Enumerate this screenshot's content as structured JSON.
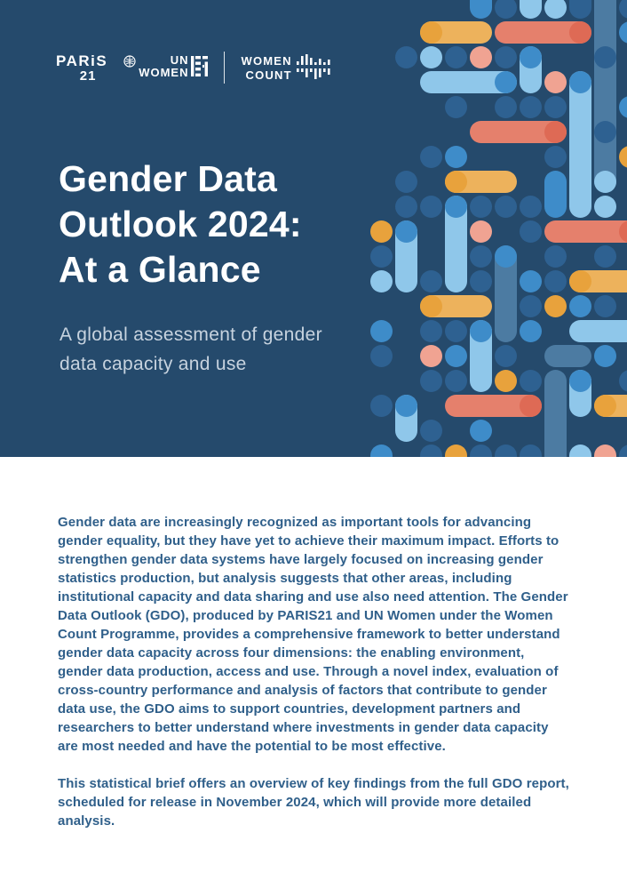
{
  "hero": {
    "background": "#254A6C",
    "logos": {
      "paris21": {
        "line1": "PARiS",
        "line2": "21"
      },
      "un_women": {
        "line1": "UN",
        "line2": "WOMEN"
      },
      "women_count": {
        "line1": "WOMEN",
        "line2": "COUNT"
      }
    },
    "title_lines": [
      "Gender Data",
      "Outlook 2024:",
      "At a Glance"
    ],
    "subtitle_lines": [
      "A global assessment of gender",
      "data capacity and use"
    ],
    "title_color": "#FFFFFF",
    "subtitle_color": "#C7D3DF"
  },
  "body": {
    "text_color": "#2F5F8A",
    "paragraph1": "Gender data are increasingly recognized as important tools for advancing gender equality, but they have yet to achieve their maximum impact. Efforts to strengthen gender data systems have largely focused on increasing gender statistics production, but analysis suggests that other areas, including institutional capacity and data sharing and use also need attention. The Gender Data Outlook (GDO), produced by PARIS21 and UN Women under the Women Count Programme, provides a comprehensive framework to better understand gender data capacity across four dimensions: the enabling environment, gender data production, access and use. Through a novel index, evaluation of cross-country performance and analysis of factors that contribute to gender data use, the GDO aims to support countries, development partners and researchers to better understand where investments in gender data capacity are most needed and have the potential to be most effective.",
    "paragraph2": "This statistical brief offers an overview of key findings from the full GDO report, scheduled for release in November 2024, which will provide more detailed analysis."
  },
  "pattern": {
    "colors": {
      "D": "#2E6191",
      "M": "#3E8CC9",
      "L": "#8FC7EA",
      "S": "#4C7BA2",
      "C": "#E5806C",
      "Cd": "#DE6A55",
      "Cl": "#F0A392",
      "O": "#E8A23C",
      "Ol": "#EDB25C"
    },
    "grid": {
      "ox": 401,
      "oy": 8,
      "pitch": 28,
      "dot": 25
    },
    "shapes": [
      {
        "c": 5,
        "r": -1,
        "d": "v",
        "len": 2,
        "col": "M"
      },
      {
        "c": 6,
        "r": 0,
        "d": "dot",
        "col": "D"
      },
      {
        "c": 7,
        "r": -1,
        "d": "v",
        "len": 2,
        "col": "L"
      },
      {
        "c": 8,
        "r": 0,
        "d": "dot",
        "col": "L"
      },
      {
        "c": 9,
        "r": -1,
        "d": "v",
        "len": 2,
        "col": "D"
      },
      {
        "c": 10,
        "r": -1,
        "d": "v",
        "len": 9,
        "col": "S"
      },
      {
        "c": 11,
        "r": 0,
        "d": "dot",
        "col": "D"
      },
      {
        "c": 11,
        "r": 1,
        "d": "dot",
        "col": "M"
      },
      {
        "c": 3,
        "r": 1,
        "d": "h",
        "len": 3,
        "col": "Ol",
        "cap": "left",
        "capCol": "O"
      },
      {
        "c": 6,
        "r": 1,
        "d": "h",
        "len": 4,
        "col": "C",
        "cap": "right",
        "capCol": "Cd"
      },
      {
        "c": 2,
        "r": 2,
        "d": "dot",
        "col": "D"
      },
      {
        "c": 3,
        "r": 2,
        "d": "dot",
        "col": "L"
      },
      {
        "c": 4,
        "r": 2,
        "d": "dot",
        "col": "D"
      },
      {
        "c": 5,
        "r": 2,
        "d": "dot",
        "col": "Cl"
      },
      {
        "c": 6,
        "r": 2,
        "d": "dot",
        "col": "D"
      },
      {
        "c": 7,
        "r": 2,
        "d": "v",
        "len": 2,
        "col": "L",
        "cap": "top",
        "capCol": "M"
      },
      {
        "c": 10,
        "r": 2,
        "d": "dot",
        "col": "D"
      },
      {
        "c": 3,
        "r": 3,
        "d": "h",
        "len": 4,
        "col": "L",
        "cap": "right",
        "capCol": "M"
      },
      {
        "c": 8,
        "r": 3,
        "d": "dot",
        "col": "Cl"
      },
      {
        "c": 9,
        "r": 3,
        "d": "v",
        "len": 6,
        "col": "L",
        "cap": "top",
        "capCol": "M"
      },
      {
        "c": 11,
        "r": 4,
        "d": "dot",
        "col": "M"
      },
      {
        "c": 4,
        "r": 4,
        "d": "dot",
        "col": "D"
      },
      {
        "c": 6,
        "r": 4,
        "d": "dot",
        "col": "D"
      },
      {
        "c": 7,
        "r": 4,
        "d": "dot",
        "col": "D"
      },
      {
        "c": 8,
        "r": 4,
        "d": "dot",
        "col": "D"
      },
      {
        "c": 10,
        "r": 5,
        "d": "dot",
        "col": "D"
      },
      {
        "c": 5,
        "r": 5,
        "d": "h",
        "len": 4,
        "col": "C",
        "cap": "right",
        "capCol": "Cd"
      },
      {
        "c": 11,
        "r": 6,
        "d": "dot",
        "col": "O"
      },
      {
        "c": 3,
        "r": 6,
        "d": "dot",
        "col": "D"
      },
      {
        "c": 4,
        "r": 6,
        "d": "dot",
        "col": "M"
      },
      {
        "c": 8,
        "r": 6,
        "d": "dot",
        "col": "D"
      },
      {
        "c": 10,
        "r": 7,
        "d": "dot",
        "col": "L"
      },
      {
        "c": 2,
        "r": 7,
        "d": "dot",
        "col": "D"
      },
      {
        "c": 4,
        "r": 7,
        "d": "h",
        "len": 3,
        "col": "Ol",
        "cap": "left",
        "capCol": "O"
      },
      {
        "c": 8,
        "r": 7,
        "d": "v",
        "len": 2,
        "col": "M"
      },
      {
        "c": 10,
        "r": 8,
        "d": "dot",
        "col": "L"
      },
      {
        "c": 2,
        "r": 8,
        "d": "dot",
        "col": "D"
      },
      {
        "c": 3,
        "r": 8,
        "d": "dot",
        "col": "D"
      },
      {
        "c": 4,
        "r": 8,
        "d": "v",
        "len": 4,
        "col": "L",
        "cap": "top",
        "capCol": "M"
      },
      {
        "c": 5,
        "r": 8,
        "d": "dot",
        "col": "D"
      },
      {
        "c": 6,
        "r": 8,
        "d": "dot",
        "col": "D"
      },
      {
        "c": 7,
        "r": 8,
        "d": "dot",
        "col": "D"
      },
      {
        "c": 1,
        "r": 9,
        "d": "dot",
        "col": "O"
      },
      {
        "c": 2,
        "r": 9,
        "d": "v",
        "len": 3,
        "col": "L",
        "cap": "top",
        "capCol": "M"
      },
      {
        "c": 5,
        "r": 9,
        "d": "dot",
        "col": "Cl"
      },
      {
        "c": 7,
        "r": 9,
        "d": "dot",
        "col": "D"
      },
      {
        "c": 8,
        "r": 9,
        "d": "h",
        "len": 4,
        "col": "C",
        "cap": "right",
        "capCol": "Cd"
      },
      {
        "c": 1,
        "r": 10,
        "d": "dot",
        "col": "D"
      },
      {
        "c": 5,
        "r": 10,
        "d": "dot",
        "col": "D"
      },
      {
        "c": 6,
        "r": 10,
        "d": "v",
        "len": 4,
        "col": "S",
        "cap": "top",
        "capCol": "M"
      },
      {
        "c": 8,
        "r": 10,
        "d": "dot",
        "col": "D"
      },
      {
        "c": 10,
        "r": 10,
        "d": "dot",
        "col": "D"
      },
      {
        "c": 1,
        "r": 11,
        "d": "dot",
        "col": "L"
      },
      {
        "c": 3,
        "r": 11,
        "d": "dot",
        "col": "D"
      },
      {
        "c": 5,
        "r": 11,
        "d": "dot",
        "col": "D"
      },
      {
        "c": 7,
        "r": 11,
        "d": "dot",
        "col": "M"
      },
      {
        "c": 8,
        "r": 11,
        "d": "dot",
        "col": "D"
      },
      {
        "c": 9,
        "r": 11,
        "d": "h",
        "len": 3,
        "col": "Ol",
        "cap": "left",
        "capCol": "O"
      },
      {
        "c": 3,
        "r": 12,
        "d": "h",
        "len": 3,
        "col": "Ol",
        "cap": "left",
        "capCol": "O"
      },
      {
        "c": 7,
        "r": 12,
        "d": "dot",
        "col": "D"
      },
      {
        "c": 8,
        "r": 12,
        "d": "dot",
        "col": "O"
      },
      {
        "c": 9,
        "r": 12,
        "d": "dot",
        "col": "M"
      },
      {
        "c": 10,
        "r": 12,
        "d": "dot",
        "col": "D"
      },
      {
        "c": 1,
        "r": 13,
        "d": "dot",
        "col": "M"
      },
      {
        "c": 3,
        "r": 13,
        "d": "dot",
        "col": "D"
      },
      {
        "c": 4,
        "r": 13,
        "d": "dot",
        "col": "D"
      },
      {
        "c": 5,
        "r": 13,
        "d": "v",
        "len": 3,
        "col": "L",
        "cap": "top",
        "capCol": "M"
      },
      {
        "c": 7,
        "r": 13,
        "d": "dot",
        "col": "M"
      },
      {
        "c": 9,
        "r": 13,
        "d": "h",
        "len": 3,
        "col": "L"
      },
      {
        "c": 1,
        "r": 14,
        "d": "dot",
        "col": "D"
      },
      {
        "c": 3,
        "r": 14,
        "d": "dot",
        "col": "Cl"
      },
      {
        "c": 4,
        "r": 14,
        "d": "dot",
        "col": "M"
      },
      {
        "c": 6,
        "r": 14,
        "d": "dot",
        "col": "D"
      },
      {
        "c": 8,
        "r": 14,
        "d": "h",
        "len": 2,
        "col": "S"
      },
      {
        "c": 10,
        "r": 14,
        "d": "dot",
        "col": "M"
      },
      {
        "c": 3,
        "r": 15,
        "d": "dot",
        "col": "D"
      },
      {
        "c": 4,
        "r": 15,
        "d": "dot",
        "col": "D"
      },
      {
        "c": 6,
        "r": 15,
        "d": "dot",
        "col": "O"
      },
      {
        "c": 7,
        "r": 15,
        "d": "dot",
        "col": "D"
      },
      {
        "c": 8,
        "r": 15,
        "d": "v",
        "len": 4,
        "col": "S"
      },
      {
        "c": 9,
        "r": 15,
        "d": "v",
        "len": 2,
        "col": "L",
        "cap": "top",
        "capCol": "M"
      },
      {
        "c": 11,
        "r": 15,
        "d": "dot",
        "col": "D"
      },
      {
        "c": 1,
        "r": 16,
        "d": "dot",
        "col": "D"
      },
      {
        "c": 2,
        "r": 16,
        "d": "v",
        "len": 2,
        "col": "L",
        "cap": "top",
        "capCol": "M"
      },
      {
        "c": 4,
        "r": 16,
        "d": "h",
        "len": 4,
        "col": "C",
        "cap": "right",
        "capCol": "Cd"
      },
      {
        "c": 10,
        "r": 16,
        "d": "h",
        "len": 2,
        "col": "Ol",
        "cap": "left",
        "capCol": "O"
      },
      {
        "c": 3,
        "r": 17,
        "d": "dot",
        "col": "D"
      },
      {
        "c": 5,
        "r": 17,
        "d": "dot",
        "col": "M"
      },
      {
        "c": 1,
        "r": 18,
        "d": "dot",
        "col": "M"
      },
      {
        "c": 3,
        "r": 18,
        "d": "dot",
        "col": "D"
      },
      {
        "c": 4,
        "r": 18,
        "d": "dot",
        "col": "O"
      },
      {
        "c": 5,
        "r": 18,
        "d": "dot",
        "col": "D"
      },
      {
        "c": 6,
        "r": 18,
        "d": "dot",
        "col": "D"
      },
      {
        "c": 7,
        "r": 18,
        "d": "dot",
        "col": "D"
      },
      {
        "c": 9,
        "r": 18,
        "d": "dot",
        "col": "L"
      },
      {
        "c": 10,
        "r": 18,
        "d": "dot",
        "col": "Cl"
      },
      {
        "c": 11,
        "r": 18,
        "d": "dot",
        "col": "D"
      }
    ]
  }
}
